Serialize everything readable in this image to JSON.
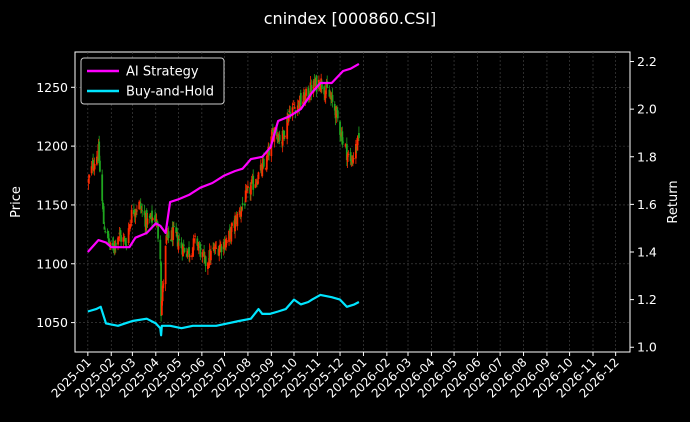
{
  "chart_data": {
    "type": "line",
    "title": "cnindex [000860.CSI]",
    "ylabel": "Price",
    "y2label": "Return",
    "background": "#000000",
    "grid": true,
    "legend_placement": "top-left",
    "x_tick_labels": [
      "2025-01",
      "2025-02",
      "2025-03",
      "2025-04",
      "2025-05",
      "2025-06",
      "2025-07",
      "2025-08",
      "2025-09",
      "2025-10",
      "2025-11",
      "2025-12",
      "2026-01",
      "2026-02",
      "2026-03",
      "2026-04",
      "2026-05",
      "2026-06",
      "2026-07",
      "2026-08",
      "2026-09",
      "2026-10",
      "2026-11",
      "2026-12"
    ],
    "xlim": [
      "2024-12-15",
      "2026-12-20"
    ],
    "ylim": [
      1025,
      1280
    ],
    "y_ticks": [
      1050,
      1100,
      1150,
      1200,
      1250
    ],
    "y2lim": [
      0.98,
      2.24
    ],
    "y2_ticks": [
      1.0,
      1.2,
      1.4,
      1.6,
      1.8,
      2.0,
      2.2
    ],
    "price_anchors": {
      "dates": [
        "2025-01-02",
        "2025-01-08",
        "2025-01-15",
        "2025-01-22",
        "2025-02-01",
        "2025-02-10",
        "2025-02-20",
        "2025-03-01",
        "2025-03-10",
        "2025-03-20",
        "2025-04-01",
        "2025-04-07",
        "2025-04-08",
        "2025-04-15",
        "2025-04-25",
        "2025-05-05",
        "2025-05-15",
        "2025-05-25",
        "2025-06-05",
        "2025-06-15",
        "2025-06-25",
        "2025-07-05",
        "2025-07-15",
        "2025-07-25",
        "2025-08-05",
        "2025-08-15",
        "2025-08-25",
        "2025-09-05",
        "2025-09-15",
        "2025-09-25",
        "2025-10-05",
        "2025-10-15",
        "2025-10-25",
        "2025-11-05",
        "2025-11-15",
        "2025-11-25",
        "2025-12-05",
        "2025-12-15",
        "2025-12-26"
      ],
      "values": [
        1170,
        1185,
        1195,
        1135,
        1110,
        1125,
        1118,
        1145,
        1150,
        1135,
        1140,
        1110,
        1060,
        1120,
        1125,
        1115,
        1110,
        1120,
        1100,
        1110,
        1115,
        1120,
        1135,
        1150,
        1165,
        1175,
        1185,
        1215,
        1205,
        1230,
        1235,
        1240,
        1250,
        1255,
        1245,
        1230,
        1205,
        1185,
        1205
      ]
    },
    "series": [
      {
        "name": "AI Strategy",
        "color": "#ff00ff",
        "dates": [
          "2025-01-01",
          "2025-01-15",
          "2025-01-25",
          "2025-02-01",
          "2025-02-25",
          "2025-03-05",
          "2025-03-20",
          "2025-04-01",
          "2025-04-07",
          "2025-04-14",
          "2025-04-20",
          "2025-04-30",
          "2025-05-15",
          "2025-05-30",
          "2025-06-15",
          "2025-06-30",
          "2025-07-15",
          "2025-07-25",
          "2025-08-05",
          "2025-08-20",
          "2025-08-31",
          "2025-09-10",
          "2025-09-25",
          "2025-10-10",
          "2025-10-25",
          "2025-11-05",
          "2025-11-20",
          "2025-12-05",
          "2025-12-15",
          "2025-12-26"
        ],
        "values": [
          1.4,
          1.45,
          1.44,
          1.42,
          1.42,
          1.46,
          1.48,
          1.52,
          1.51,
          1.48,
          1.61,
          1.62,
          1.64,
          1.67,
          1.69,
          1.72,
          1.74,
          1.75,
          1.79,
          1.8,
          1.84,
          1.95,
          1.97,
          2.0,
          2.07,
          2.11,
          2.11,
          2.16,
          2.17,
          2.19
        ]
      },
      {
        "name": "Buy-and-Hold",
        "color": "#00e5ff",
        "dates": [
          "2025-01-01",
          "2025-01-12",
          "2025-01-18",
          "2025-01-25",
          "2025-02-10",
          "2025-03-01",
          "2025-03-20",
          "2025-04-01",
          "2025-04-07",
          "2025-04-08",
          "2025-04-09",
          "2025-04-20",
          "2025-05-05",
          "2025-05-20",
          "2025-06-05",
          "2025-06-20",
          "2025-07-05",
          "2025-07-20",
          "2025-08-05",
          "2025-08-15",
          "2025-08-20",
          "2025-08-30",
          "2025-09-10",
          "2025-09-20",
          "2025-10-01",
          "2025-10-10",
          "2025-10-20",
          "2025-10-25",
          "2025-11-05",
          "2025-11-20",
          "2025-12-01",
          "2025-12-10",
          "2025-12-20",
          "2025-12-26"
        ],
        "values": [
          1.15,
          1.16,
          1.17,
          1.1,
          1.09,
          1.11,
          1.12,
          1.1,
          1.08,
          1.05,
          1.09,
          1.09,
          1.08,
          1.09,
          1.09,
          1.09,
          1.1,
          1.11,
          1.12,
          1.16,
          1.14,
          1.14,
          1.15,
          1.16,
          1.2,
          1.18,
          1.19,
          1.2,
          1.22,
          1.21,
          1.2,
          1.17,
          1.18,
          1.19
        ]
      }
    ]
  }
}
